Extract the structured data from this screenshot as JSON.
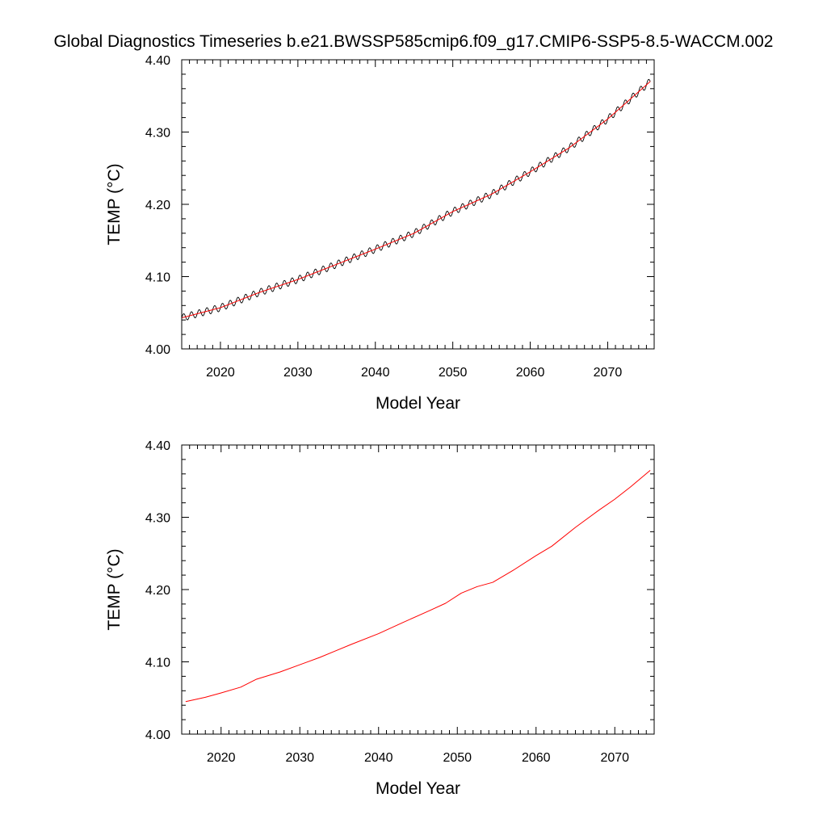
{
  "title": "Global Diagnostics Timeseries b.e21.BWSSP585cmip6.f09_g17.CMIP6-SSP5-8.5-WACCM.002",
  "colors": {
    "monthly": "#000000",
    "smoothed": "#ff0000",
    "axis": "#000000"
  },
  "chart_data": [
    {
      "type": "line",
      "xlabel": "Model Year",
      "ylabel": "TEMP (°C)",
      "xlim": [
        2015,
        2076
      ],
      "ylim": [
        4.0,
        4.4
      ],
      "x_ticks": [
        2020,
        2030,
        2040,
        2050,
        2060,
        2070
      ],
      "x_tick_labels": [
        "2020",
        "2030",
        "2040",
        "2050",
        "2060",
        "2070"
      ],
      "y_ticks": [
        4.0,
        4.1,
        4.2,
        4.3,
        4.4
      ],
      "y_tick_labels": [
        "4.00",
        "4.10",
        "4.20",
        "4.30",
        "4.40"
      ],
      "grid": false,
      "series": [
        {
          "style": "monthly timeseries with annual oscillation (amplitude ~0.005)",
          "color": "#000000",
          "x": [
            2015,
            2020,
            2025,
            2030,
            2035,
            2040,
            2045,
            2050,
            2055,
            2060,
            2065,
            2070,
            2075.5
          ],
          "values": [
            4.043,
            4.057,
            4.078,
            4.096,
            4.117,
            4.138,
            4.16,
            4.19,
            4.214,
            4.245,
            4.278,
            4.318,
            4.37
          ]
        },
        {
          "style": "running mean",
          "color": "#ff0000",
          "x": [
            2015,
            2020,
            2025,
            2030,
            2035,
            2040,
            2045,
            2050,
            2055,
            2060,
            2065,
            2070,
            2075.5
          ],
          "values": [
            4.043,
            4.057,
            4.078,
            4.096,
            4.117,
            4.138,
            4.16,
            4.19,
            4.214,
            4.245,
            4.278,
            4.318,
            4.37
          ]
        }
      ]
    },
    {
      "type": "line",
      "xlabel": "Model Year",
      "ylabel": "TEMP (°C)",
      "xlim": [
        2015,
        2075
      ],
      "ylim": [
        4.0,
        4.4
      ],
      "x_ticks": [
        2020,
        2030,
        2040,
        2050,
        2060,
        2070
      ],
      "x_tick_labels": [
        "2020",
        "2030",
        "2040",
        "2050",
        "2060",
        "2070"
      ],
      "y_ticks": [
        4.0,
        4.1,
        4.2,
        4.3,
        4.4
      ],
      "y_tick_labels": [
        "4.00",
        "4.10",
        "4.20",
        "4.30",
        "4.40"
      ],
      "grid": false,
      "series": [
        {
          "style": "annual mean",
          "color": "#ff0000",
          "x": [
            2015.5,
            2018,
            2020,
            2022.5,
            2024.5,
            2027.5,
            2030,
            2032.5,
            2034.5,
            2036.5,
            2040,
            2043,
            2046.5,
            2048.5,
            2050.5,
            2052.5,
            2054.5,
            2057,
            2060,
            2062,
            2065,
            2068,
            2070,
            2072,
            2074.5
          ],
          "values": [
            4.045,
            4.051,
            4.057,
            4.065,
            4.076,
            4.086,
            4.096,
            4.106,
            4.115,
            4.124,
            4.139,
            4.154,
            4.171,
            4.181,
            4.195,
            4.204,
            4.21,
            4.226,
            4.247,
            4.26,
            4.286,
            4.31,
            4.325,
            4.342,
            4.365
          ]
        }
      ]
    }
  ]
}
